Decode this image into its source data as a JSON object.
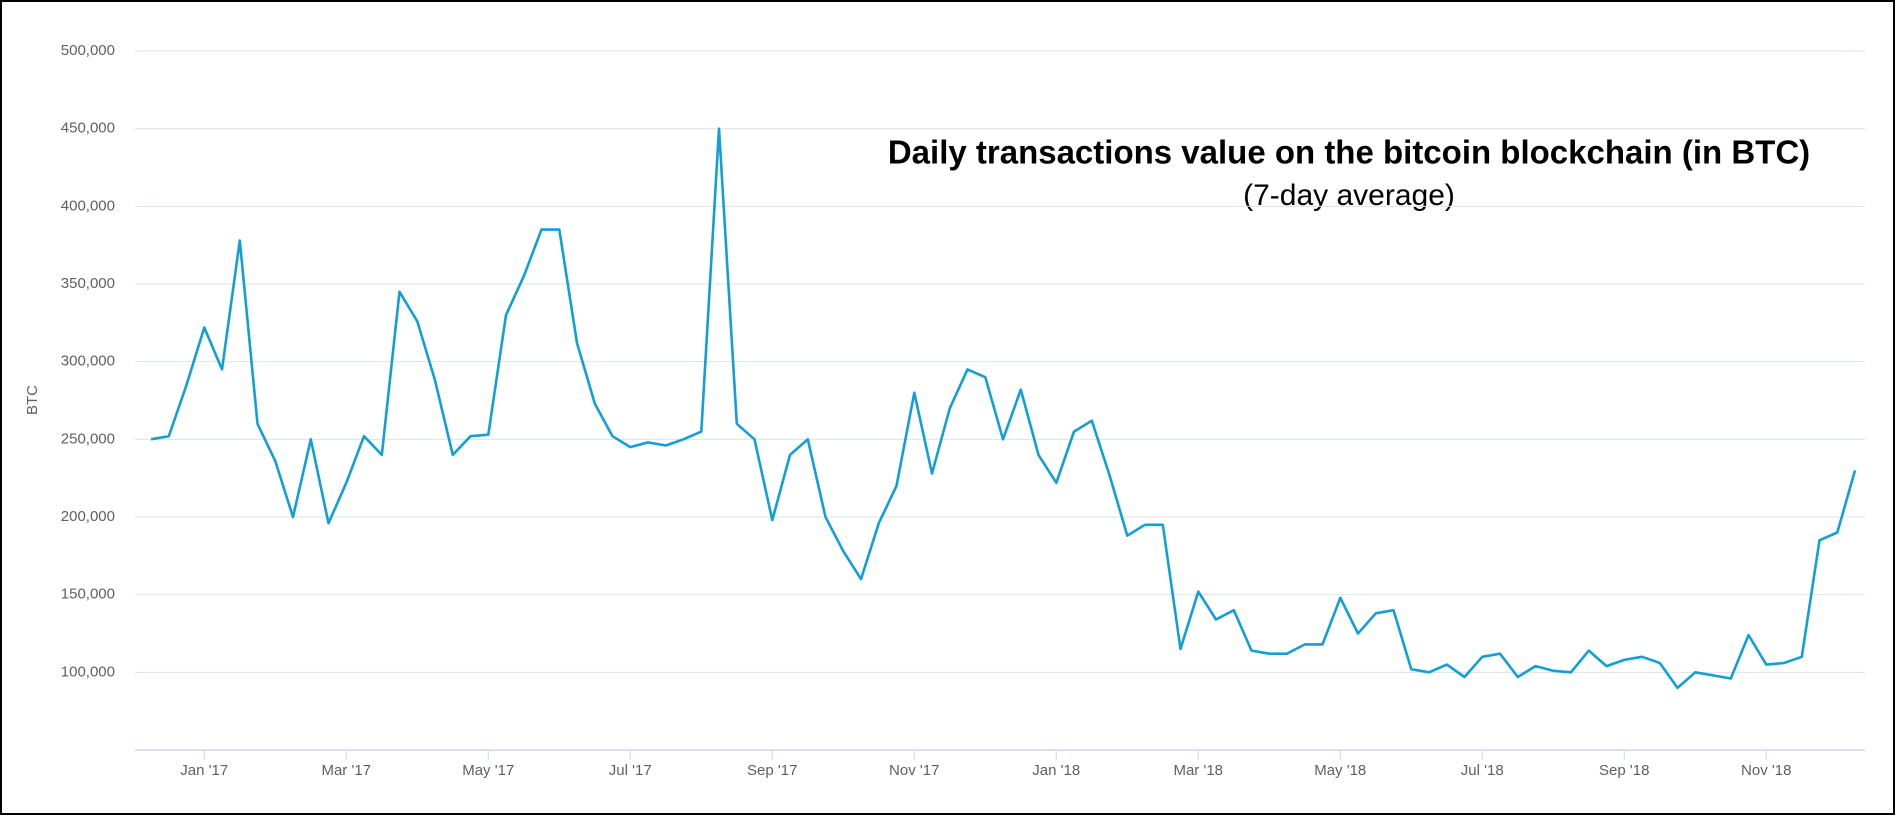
{
  "chart_data": {
    "type": "line",
    "title": "Daily transactions value on the bitcoin blockchain (in BTC)",
    "subtitle": "(7-day average)",
    "y_label": "BTC",
    "categories": [
      null,
      null,
      null,
      "Jan '17",
      null,
      null,
      null,
      null,
      null,
      null,
      null,
      "Mar '17",
      null,
      null,
      null,
      null,
      null,
      null,
      null,
      "May '17",
      null,
      null,
      null,
      null,
      null,
      null,
      null,
      "Jul '17",
      null,
      null,
      null,
      null,
      null,
      null,
      null,
      "Sep '17",
      null,
      null,
      null,
      null,
      null,
      null,
      null,
      "Nov '17",
      null,
      null,
      null,
      null,
      null,
      null,
      null,
      "Jan '18",
      null,
      null,
      null,
      null,
      null,
      null,
      null,
      "Mar '18",
      null,
      null,
      null,
      null,
      null,
      null,
      null,
      "May '18",
      null,
      null,
      null,
      null,
      null,
      null,
      null,
      "Jul '18",
      null,
      null,
      null,
      null,
      null,
      null,
      null,
      "Sep '18",
      null,
      null,
      null,
      null,
      null,
      null,
      null,
      "Nov '18",
      null,
      null,
      null,
      null,
      null
    ],
    "series": [
      {
        "name": "BTC",
        "color": "#139fd6",
        "values": [
          250000,
          252000,
          285000,
          322000,
          295000,
          378000,
          260000,
          236000,
          200000,
          250000,
          196000,
          222000,
          252000,
          240000,
          345000,
          326000,
          288000,
          240000,
          252000,
          253000,
          330000,
          355000,
          385000,
          385000,
          312000,
          273000,
          252000,
          245000,
          248000,
          246000,
          250000,
          255000,
          450000,
          260000,
          250000,
          198000,
          240000,
          250000,
          200000,
          178000,
          160000,
          196000,
          220000,
          280000,
          228000,
          270000,
          295000,
          290000,
          250000,
          282000,
          240000,
          222000,
          255000,
          262000,
          227000,
          188000,
          195000,
          195000,
          115000,
          152000,
          134000,
          140000,
          114000,
          112000,
          112000,
          118000,
          118000,
          148000,
          125000,
          138000,
          140000,
          102000,
          100000,
          105000,
          97000,
          110000,
          112000,
          97000,
          104000,
          101000,
          100000,
          114000,
          104000,
          108000,
          110000,
          106000,
          90000,
          100000,
          98000,
          96000,
          124000,
          105000,
          106000,
          110000,
          185000,
          190000,
          230000
        ]
      }
    ],
    "ylim": [
      50000,
      500000
    ],
    "yticks": [
      {
        "value": 100000,
        "label": "100,000"
      },
      {
        "value": 150000,
        "label": "150,000"
      },
      {
        "value": 200000,
        "label": "200,000"
      },
      {
        "value": 250000,
        "label": "250,000"
      },
      {
        "value": 300000,
        "label": "300,000"
      },
      {
        "value": 350000,
        "label": "350,000"
      },
      {
        "value": 400000,
        "label": "400,000"
      },
      {
        "value": 450000,
        "label": "450,000"
      },
      {
        "value": 500000,
        "label": "500,000"
      }
    ],
    "grid": true
  }
}
